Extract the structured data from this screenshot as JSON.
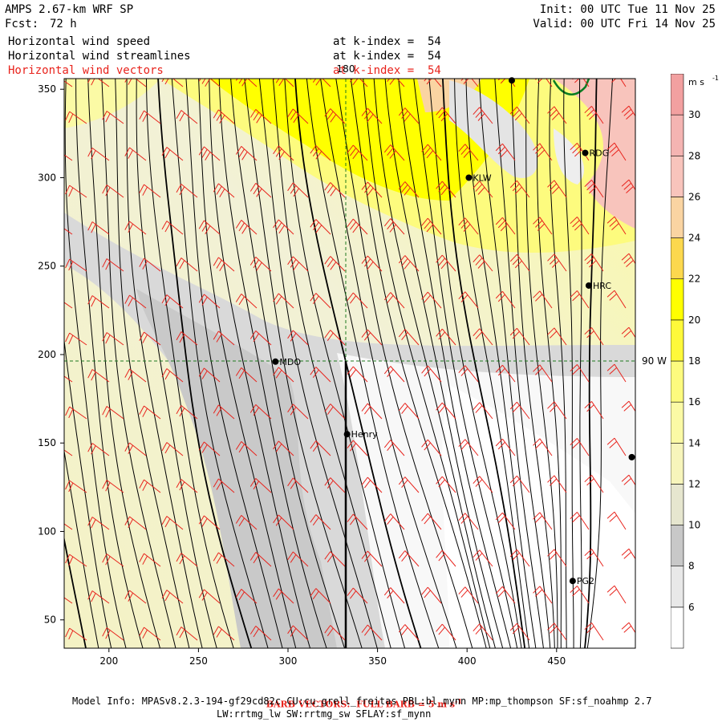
{
  "header": {
    "model_title": "AMPS 2.67-km WRF SP",
    "forecast_label": "Fcst:",
    "forecast_hours": "72 h",
    "init_label": "Init: 00 UTC Tue 11 Nov 25",
    "valid_label": "Valid: 00 UTC Fri 14 Nov 25"
  },
  "fields": [
    {
      "name": "Horizontal wind speed",
      "level": "at k-index =  54",
      "color": "#000000"
    },
    {
      "name": "Horizontal wind streamlines",
      "level": "at k-index =  54",
      "color": "#000000"
    },
    {
      "name": "Horizontal wind vectors",
      "level": "at k-index =  54",
      "color": "#e8231c"
    }
  ],
  "axes": {
    "x_ticks": [
      "200",
      "250",
      "300",
      "350",
      "400",
      "450"
    ],
    "y_ticks": [
      "50",
      "100",
      "150",
      "200",
      "250",
      "300",
      "350"
    ],
    "x_range": [
      175,
      494
    ],
    "y_range": [
      34,
      356
    ],
    "meridian_label": "180",
    "parallel_label": "90 W"
  },
  "stations": [
    {
      "id": "LIT",
      "label": "",
      "x": 425,
      "y": 355
    },
    {
      "id": "RDG",
      "label": "RDG",
      "x": 466,
      "y": 314
    },
    {
      "id": "KLW",
      "label": "KLW",
      "x": 401,
      "y": 300
    },
    {
      "id": "HRC",
      "label": "HRC",
      "x": 468,
      "y": 239
    },
    {
      "id": "MDO",
      "label": "MDO",
      "x": 293,
      "y": 196
    },
    {
      "id": "Henry",
      "label": "Henry",
      "x": 333,
      "y": 155
    },
    {
      "id": "E",
      "label": "",
      "x": 492,
      "y": 142
    },
    {
      "id": "PG2",
      "label": "PG2",
      "x": 459,
      "y": 72
    }
  ],
  "colorbar": {
    "unit": "m s",
    "unit_exp": "-1",
    "levels": [
      6,
      8,
      10,
      12,
      14,
      16,
      18,
      20,
      22,
      24,
      26,
      28,
      30
    ],
    "labels": [
      "6",
      "8",
      "10",
      "12",
      "14",
      "16",
      "18",
      "20",
      "22",
      "24",
      "26",
      "28",
      "30"
    ],
    "colors": [
      "#ffffff",
      "#e8e8e8",
      "#c8c8c8",
      "#e6e6cf",
      "#f7f5bb",
      "#fbfaa5",
      "#fdfb7e",
      "#fef93a",
      "#ffff00",
      "#fcd84e",
      "#fad4a2",
      "#f8c4bc",
      "#f4b4b2",
      "#f2a0a0"
    ]
  },
  "footer": {
    "barb_note": "BARB VECTORS:  FULL BARB = 5 m s",
    "barb_exp": "-1",
    "model_info": "Model Info: MPASv8.2.3-194-gf29cd82c CU:cu_grell_freitas PBL:bl_mynn MP:mp_thompson SF:sf_noahmp 2.7",
    "model_info_2": "LW:rrtmg_lw SW:rrtmg_sw SFLAY:sf_mynn"
  }
}
